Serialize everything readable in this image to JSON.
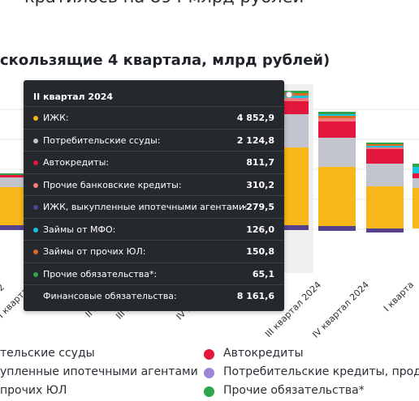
{
  "header": {
    "title_visible": "кратилось на 894 млрд рублей",
    "subtitle_visible": "скользящие 4 квартала, млрд рублей)"
  },
  "chart_data": {
    "type": "bar",
    "stacked": true,
    "categories_visible": [
      "2",
      "I квартал",
      "II квартал",
      "III квартал",
      "IV квартал",
      "III квартал 2024",
      "IV квартал 2024",
      "I кварта"
    ],
    "series": [
      {
        "name": "ИЖК",
        "color": "#f7b719"
      },
      {
        "name": "Потребительские ссуды",
        "color": "#c2c4ce"
      },
      {
        "name": "Автокредиты",
        "color": "#e3173d"
      },
      {
        "name": "Прочие банковские кредиты",
        "color": "#f47c7c"
      },
      {
        "name": "ИЖК, выкупленные ипотечными агентами",
        "color": "#55418c"
      },
      {
        "name": "Займы от МФО",
        "color": "#19c2e0"
      },
      {
        "name": "Займы от прочих ЮЛ",
        "color": "#d96a20"
      },
      {
        "name": "Прочие обязательства*",
        "color": "#2fa54c"
      }
    ],
    "highlighted_bar": "II квартал 2024"
  },
  "tooltip": {
    "header": "II квартал 2024",
    "rows": [
      {
        "label": "ИЖК:",
        "value": "4 852,9",
        "color": "#f7b719"
      },
      {
        "label": "Потребительские ссуды:",
        "value": "2 124,8",
        "color": "#c2c4ce"
      },
      {
        "label": "Автокредиты:",
        "value": "811,7",
        "color": "#e3173d"
      },
      {
        "label": "Прочие банковские кредиты:",
        "value": "310,2",
        "color": "#f47c7c"
      },
      {
        "label": "ИЖК, выкупленные ипотечными агентами:",
        "value": "-279,5",
        "color": "#55418c"
      },
      {
        "label": "Займы от МФО:",
        "value": "126,0",
        "color": "#19c2e0"
      },
      {
        "label": "Займы от прочих ЮЛ:",
        "value": "150,8",
        "color": "#d96a20"
      },
      {
        "label": "Прочие обязательства*:",
        "value": "65,1",
        "color": "#2fa54c"
      }
    ],
    "total_label": "Финансовые обязательства:",
    "total_value": "8 161,6"
  },
  "legend": [
    {
      "label": "тельские ссуды",
      "color": "#c2c4ce",
      "dot_visible": false
    },
    {
      "label": "Автокредиты",
      "color": "#e3173d",
      "dot_visible": true
    },
    {
      "label": "упленные ипотечными агентами",
      "color": "#55418c",
      "dot_visible": false
    },
    {
      "label": "Потребительские кредиты, продан",
      "color": "#9b86d9",
      "dot_visible": true
    },
    {
      "label": "прочих ЮЛ",
      "color": "#d96a20",
      "dot_visible": false
    },
    {
      "label": "Прочие обязательства*",
      "color": "#2fa54c",
      "dot_visible": true
    }
  ]
}
